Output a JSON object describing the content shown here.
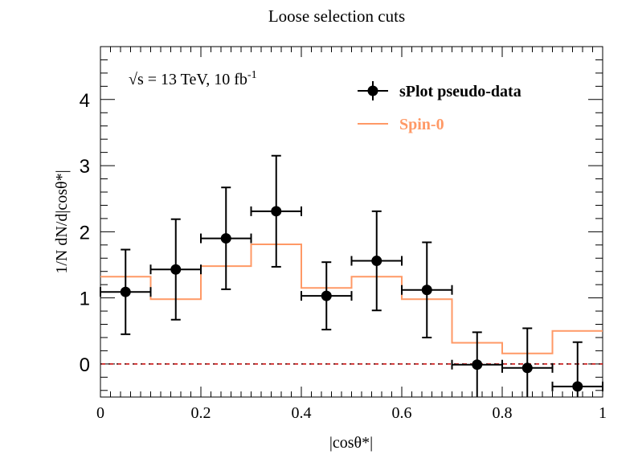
{
  "chart_data": {
    "type": "histogram-with-errorbars",
    "title": "Loose selection cuts",
    "xlabel": "|cosθ*|",
    "ylabel": "1/N dN/d|cosθ*|",
    "xlim": [
      0,
      1
    ],
    "ylim": [
      -0.5,
      4.8
    ],
    "x_ticks": [
      0,
      0.2,
      0.4,
      0.6,
      0.8,
      1
    ],
    "x_tick_labels": [
      "0",
      "0.2",
      "0.4",
      "0.6",
      "0.8",
      "1"
    ],
    "y_ticks": [
      0,
      1,
      2,
      3,
      4
    ],
    "y_tick_labels": [
      "0",
      "1",
      "2",
      "3",
      "4"
    ],
    "annotation": {
      "sqrt_s": "√s = 13 TeV, 10 fb",
      "superscript": "-1"
    },
    "legend": [
      {
        "label": "sPlot pseudo-data",
        "color": "#000000",
        "style": "marker"
      },
      {
        "label": "Spin-0",
        "color": "#ff9966",
        "style": "line"
      }
    ],
    "series": [
      {
        "name": "sPlot pseudo-data",
        "color": "#000000",
        "x": [
          0.05,
          0.15,
          0.25,
          0.35,
          0.45,
          0.55,
          0.65,
          0.75,
          0.85,
          0.95
        ],
        "y": [
          1.09,
          1.43,
          1.9,
          2.31,
          1.03,
          1.56,
          1.12,
          -0.01,
          -0.06,
          -0.34
        ],
        "yerr": [
          0.64,
          0.76,
          0.77,
          0.84,
          0.51,
          0.75,
          0.72,
          0.49,
          0.6,
          0.67
        ],
        "xerr": 0.05
      },
      {
        "name": "Spin-0",
        "color": "#ff9966",
        "bin_edges": [
          0,
          0.1,
          0.2,
          0.3,
          0.4,
          0.5,
          0.6,
          0.7,
          0.8,
          0.9,
          1.0
        ],
        "values": [
          1.32,
          0.98,
          1.48,
          1.81,
          1.15,
          1.32,
          0.98,
          0.32,
          0.16,
          0.5
        ]
      }
    ],
    "reference_line": {
      "y": 0,
      "color": "#cc0000",
      "style": "dashed"
    }
  }
}
